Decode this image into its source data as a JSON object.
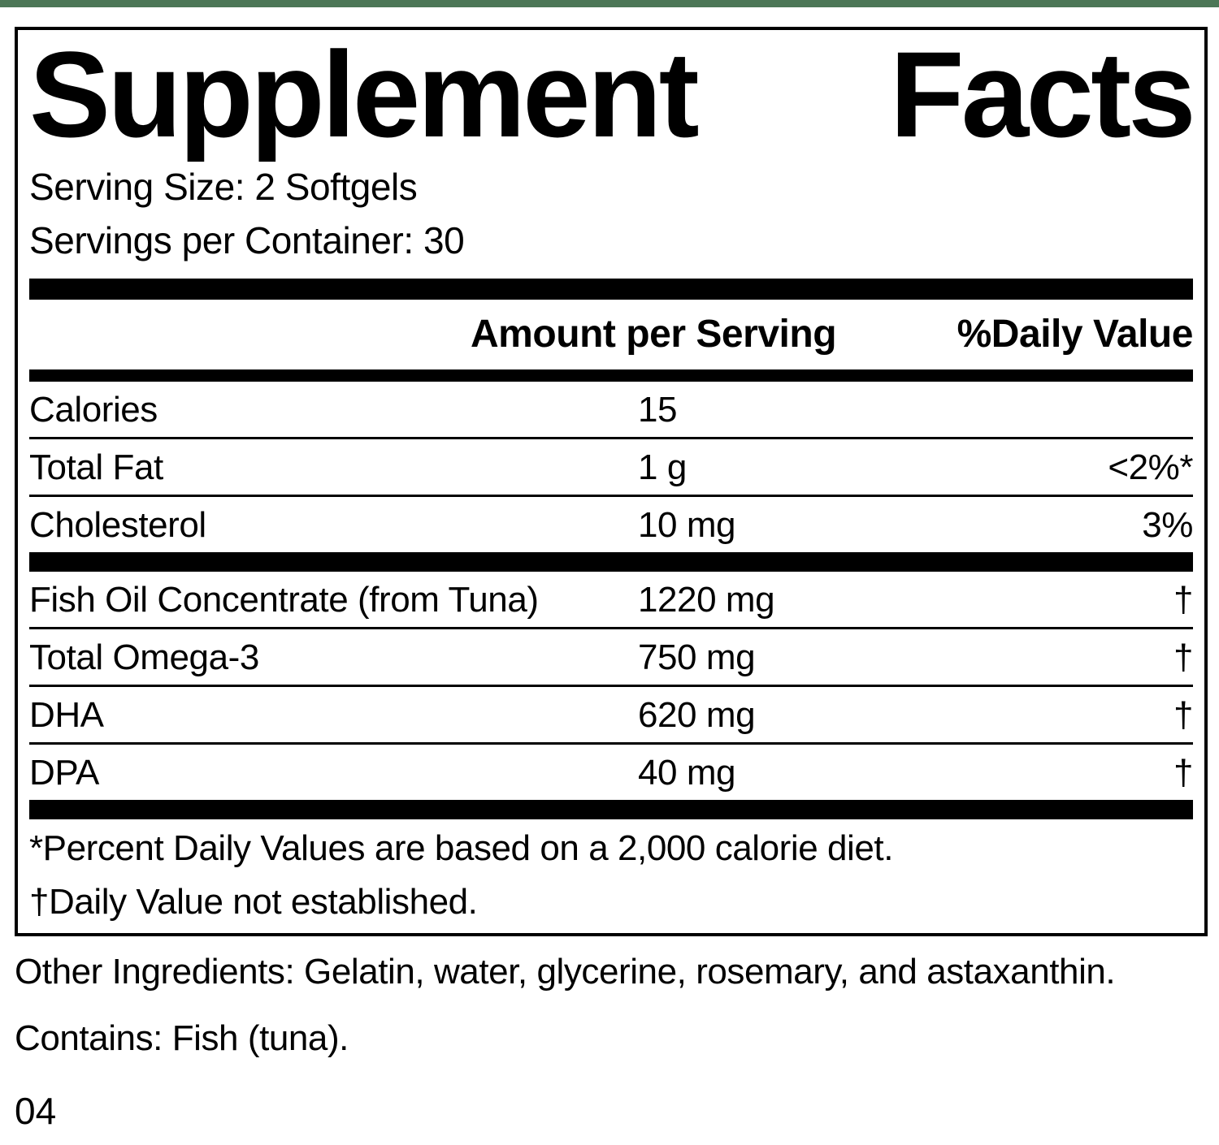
{
  "theme": {
    "accent_green": "#4c7656",
    "text_color": "#000000",
    "background_color": "#ffffff"
  },
  "title": {
    "word_left": "Supplement",
    "word_right": "Facts"
  },
  "serving": {
    "size_line": "Serving Size: 2 Softgels",
    "per_container_line": "Servings per Container: 30"
  },
  "table": {
    "headers": {
      "amount": "Amount per Serving",
      "daily_value": "%Daily Value"
    },
    "rows": [
      {
        "name": "Calories",
        "amount": "15",
        "dv": ""
      },
      {
        "name": "Total Fat",
        "amount": "1 g",
        "dv": "<2%*"
      },
      {
        "name": "Cholesterol",
        "amount": "10 mg",
        "dv": "3%"
      },
      {
        "name": "Fish Oil Concentrate (from Tuna)",
        "amount": "1220 mg",
        "dv": "†"
      },
      {
        "name": "Total Omega-3",
        "amount": "750 mg",
        "dv": "†"
      },
      {
        "name": "DHA",
        "amount": "620 mg",
        "dv": "†"
      },
      {
        "name": "DPA",
        "amount": "40 mg",
        "dv": "†"
      }
    ],
    "footnotes": {
      "percent_note": "*Percent Daily Values are based on a 2,000 calorie diet.",
      "dagger_note": "†Daily Value not established."
    }
  },
  "footer": {
    "other_ingredients": "Other Ingredients: Gelatin, water, glycerine, rosemary, and astaxanthin.",
    "contains": "Contains: Fish (tuna).",
    "code": "04"
  }
}
